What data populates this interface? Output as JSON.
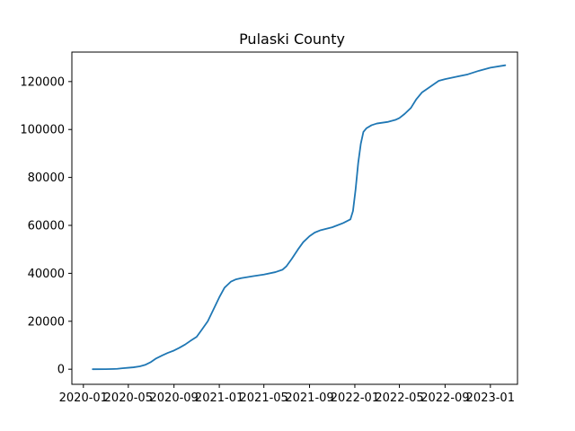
{
  "chart_data": {
    "type": "line",
    "title": "Pulaski County",
    "xlabel": "",
    "ylabel": "",
    "grid": false,
    "xlim": [
      "2019-12-01",
      "2023-03-15"
    ],
    "ylim": [
      -6300,
      132300
    ],
    "x_ticks": [
      {
        "date": "2020-01-01",
        "label": "2020-01"
      },
      {
        "date": "2020-05-01",
        "label": "2020-05"
      },
      {
        "date": "2020-09-01",
        "label": "2020-09"
      },
      {
        "date": "2021-01-01",
        "label": "2021-01"
      },
      {
        "date": "2021-05-01",
        "label": "2021-05"
      },
      {
        "date": "2021-09-01",
        "label": "2021-09"
      },
      {
        "date": "2022-01-01",
        "label": "2022-01"
      },
      {
        "date": "2022-05-01",
        "label": "2022-05"
      },
      {
        "date": "2022-09-01",
        "label": "2022-09"
      },
      {
        "date": "2023-01-01",
        "label": "2023-01"
      }
    ],
    "y_ticks": [
      {
        "value": 0,
        "label": "0"
      },
      {
        "value": 20000,
        "label": "20000"
      },
      {
        "value": 40000,
        "label": "40000"
      },
      {
        "value": 60000,
        "label": "60000"
      },
      {
        "value": 80000,
        "label": "80000"
      },
      {
        "value": 100000,
        "label": "100000"
      },
      {
        "value": 120000,
        "label": "120000"
      }
    ],
    "series": [
      {
        "color": "#1f77b4",
        "points": [
          [
            "2020-01-26",
            0
          ],
          [
            "2020-03-01",
            20
          ],
          [
            "2020-04-01",
            150
          ],
          [
            "2020-04-15",
            400
          ],
          [
            "2020-05-01",
            600
          ],
          [
            "2020-05-15",
            800
          ],
          [
            "2020-06-01",
            1200
          ],
          [
            "2020-06-15",
            1800
          ],
          [
            "2020-07-01",
            3000
          ],
          [
            "2020-07-15",
            4500
          ],
          [
            "2020-08-01",
            5800
          ],
          [
            "2020-08-15",
            6800
          ],
          [
            "2020-09-01",
            7800
          ],
          [
            "2020-09-15",
            8900
          ],
          [
            "2020-10-01",
            10300
          ],
          [
            "2020-10-15",
            11800
          ],
          [
            "2020-11-01",
            13500
          ],
          [
            "2020-11-15",
            16500
          ],
          [
            "2020-12-01",
            20000
          ],
          [
            "2020-12-15",
            24500
          ],
          [
            "2021-01-01",
            30000
          ],
          [
            "2021-01-15",
            34000
          ],
          [
            "2021-02-01",
            36500
          ],
          [
            "2021-02-15",
            37500
          ],
          [
            "2021-03-01",
            38000
          ],
          [
            "2021-04-01",
            38800
          ],
          [
            "2021-05-01",
            39500
          ],
          [
            "2021-06-01",
            40500
          ],
          [
            "2021-06-20",
            41500
          ],
          [
            "2021-07-01",
            43000
          ],
          [
            "2021-07-15",
            46000
          ],
          [
            "2021-08-01",
            50000
          ],
          [
            "2021-08-15",
            53000
          ],
          [
            "2021-09-01",
            55500
          ],
          [
            "2021-09-15",
            57000
          ],
          [
            "2021-10-01",
            58000
          ],
          [
            "2021-11-01",
            59200
          ],
          [
            "2021-12-01",
            61000
          ],
          [
            "2021-12-20",
            62500
          ],
          [
            "2021-12-27",
            66000
          ],
          [
            "2022-01-03",
            75000
          ],
          [
            "2022-01-10",
            86000
          ],
          [
            "2022-01-17",
            94000
          ],
          [
            "2022-01-24",
            99000
          ],
          [
            "2022-02-01",
            100500
          ],
          [
            "2022-02-15",
            101800
          ],
          [
            "2022-03-01",
            102500
          ],
          [
            "2022-04-01",
            103200
          ],
          [
            "2022-04-20",
            104000
          ],
          [
            "2022-05-01",
            104800
          ],
          [
            "2022-05-15",
            106500
          ],
          [
            "2022-06-01",
            109000
          ],
          [
            "2022-06-15",
            112500
          ],
          [
            "2022-07-01",
            115500
          ],
          [
            "2022-07-15",
            117000
          ],
          [
            "2022-08-01",
            118800
          ],
          [
            "2022-08-15",
            120300
          ],
          [
            "2022-09-01",
            121000
          ],
          [
            "2022-10-01",
            122000
          ],
          [
            "2022-11-01",
            123000
          ],
          [
            "2022-12-01",
            124500
          ],
          [
            "2023-01-01",
            125800
          ],
          [
            "2023-02-10",
            126800
          ]
        ]
      }
    ]
  }
}
